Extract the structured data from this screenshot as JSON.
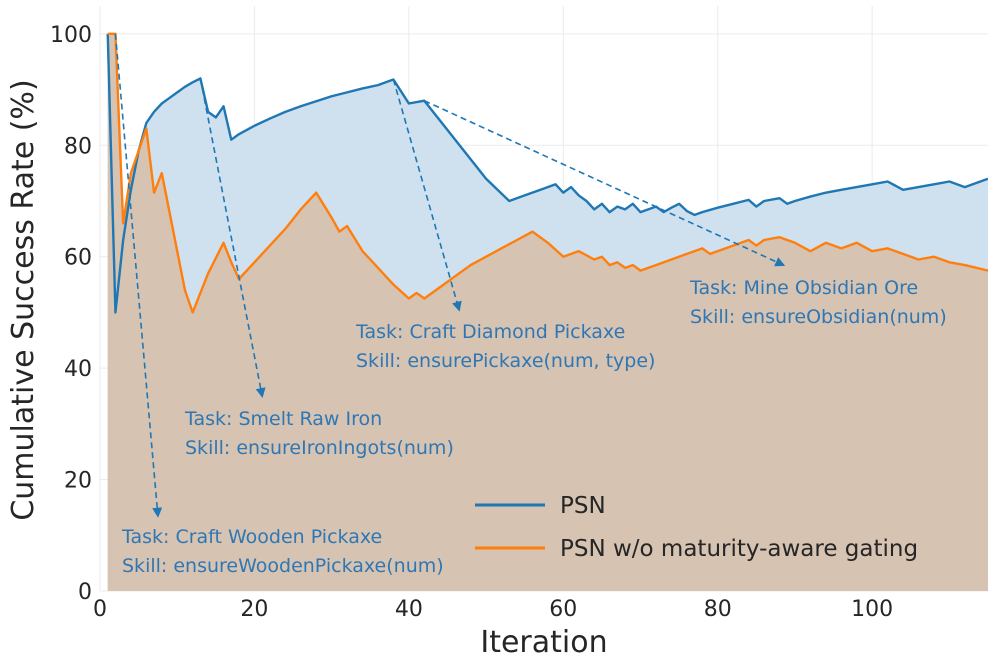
{
  "chart_data": {
    "type": "area",
    "xlabel": "Iteration",
    "ylabel": "Cumulative Success Rate (%)",
    "xlim": [
      0,
      115
    ],
    "ylim": [
      0,
      105
    ],
    "xticks": [
      0,
      20,
      40,
      60,
      80,
      100
    ],
    "yticks": [
      0,
      20,
      40,
      60,
      80,
      100
    ],
    "grid": true,
    "legend_position": "bottom-right",
    "series": [
      {
        "name": "PSN",
        "color": "#1f77b4",
        "fill": "#cfe1ef",
        "x": [
          1,
          2,
          3,
          4,
          5,
          6,
          7,
          8,
          9,
          10,
          11,
          12,
          13,
          14,
          15,
          16,
          17,
          18,
          20,
          22,
          24,
          26,
          28,
          30,
          32,
          34,
          36,
          38,
          40,
          42,
          44,
          46,
          48,
          50,
          53,
          55,
          57,
          59,
          60,
          61,
          62,
          63,
          64,
          65,
          66,
          67,
          68,
          69,
          70,
          71,
          72,
          73,
          74,
          75,
          76,
          77,
          78,
          80,
          82,
          84,
          85,
          86,
          88,
          89,
          90,
          92,
          94,
          96,
          98,
          100,
          102,
          104,
          106,
          108,
          110,
          112,
          115
        ],
        "y": [
          100,
          50,
          63,
          72,
          79,
          84,
          86,
          87.5,
          88.5,
          89.5,
          90.5,
          91.3,
          92,
          86,
          85,
          87,
          81,
          82,
          83.5,
          84.8,
          86,
          87,
          87.9,
          88.8,
          89.5,
          90.2,
          90.8,
          91.8,
          87.5,
          88,
          84.5,
          81,
          77.5,
          74,
          70,
          71,
          72,
          73,
          71.5,
          72.5,
          71,
          70,
          68.5,
          69.5,
          68,
          69,
          68.5,
          69.5,
          68,
          68.5,
          69,
          68,
          68.8,
          69.5,
          68.2,
          67.5,
          68,
          68.8,
          69.5,
          70.2,
          69,
          70,
          70.5,
          69.5,
          70,
          70.8,
          71.5,
          72,
          72.5,
          73,
          73.5,
          72,
          72.5,
          73,
          73.5,
          72.5,
          74
        ]
      },
      {
        "name": "PSN w/o maturity-aware gating",
        "color": "#ff7f0e",
        "fill": "#d6c3b2",
        "x": [
          1,
          2,
          3,
          4,
          5,
          6,
          7,
          8,
          9,
          10,
          11,
          12,
          14,
          16,
          17,
          18,
          20,
          22,
          24,
          26,
          28,
          30,
          31,
          32,
          34,
          36,
          38,
          40,
          41,
          42,
          44,
          46,
          48,
          50,
          52,
          54,
          56,
          58,
          60,
          62,
          64,
          65,
          66,
          67,
          68,
          69,
          70,
          72,
          74,
          76,
          78,
          79,
          80,
          82,
          84,
          85,
          86,
          88,
          89,
          90,
          92,
          94,
          96,
          98,
          100,
          102,
          104,
          106,
          108,
          110,
          112,
          115
        ],
        "y": [
          100,
          100,
          66,
          75,
          79,
          83,
          71.5,
          75,
          68,
          61,
          54,
          50,
          57,
          62.5,
          59,
          56,
          59,
          62,
          65,
          68.5,
          71.5,
          67,
          64.5,
          65.5,
          61,
          58,
          55,
          52.5,
          53.5,
          52.5,
          54.5,
          56.5,
          58.5,
          60,
          61.5,
          63,
          64.5,
          62.5,
          60,
          61,
          59.5,
          60,
          58.5,
          59,
          58,
          58.5,
          57.5,
          58.5,
          59.5,
          60.5,
          61.5,
          60.5,
          61,
          62,
          63,
          62,
          63,
          63.5,
          63,
          62.5,
          61,
          62.5,
          61.5,
          62.5,
          61,
          61.5,
          60.5,
          59.5,
          60,
          59,
          58.5,
          57.5
        ]
      }
    ],
    "annotations": [
      {
        "line1": "Task: Craft Wooden Pickaxe",
        "line2": "Skill: ensureWoodenPickaxe(num)",
        "from": [
          2,
          100
        ],
        "to": [
          7.5,
          13.5
        ]
      },
      {
        "line1": "Task: Smelt Raw Iron",
        "line2": "Skill: ensureIronIngots(num)",
        "from": [
          13,
          92
        ],
        "to": [
          21,
          35
        ]
      },
      {
        "line1": "Task: Craft Diamond Pickaxe",
        "line2": "Skill:  ensurePickaxe(num, type)",
        "from": [
          38,
          91.8
        ],
        "to": [
          46.5,
          50.5
        ]
      },
      {
        "line1": "Task: Mine Obsidian Ore",
        "line2": "Skill:  ensureObsidian(num)",
        "from": [
          42,
          88
        ],
        "to": [
          88.5,
          58.5
        ]
      }
    ]
  }
}
